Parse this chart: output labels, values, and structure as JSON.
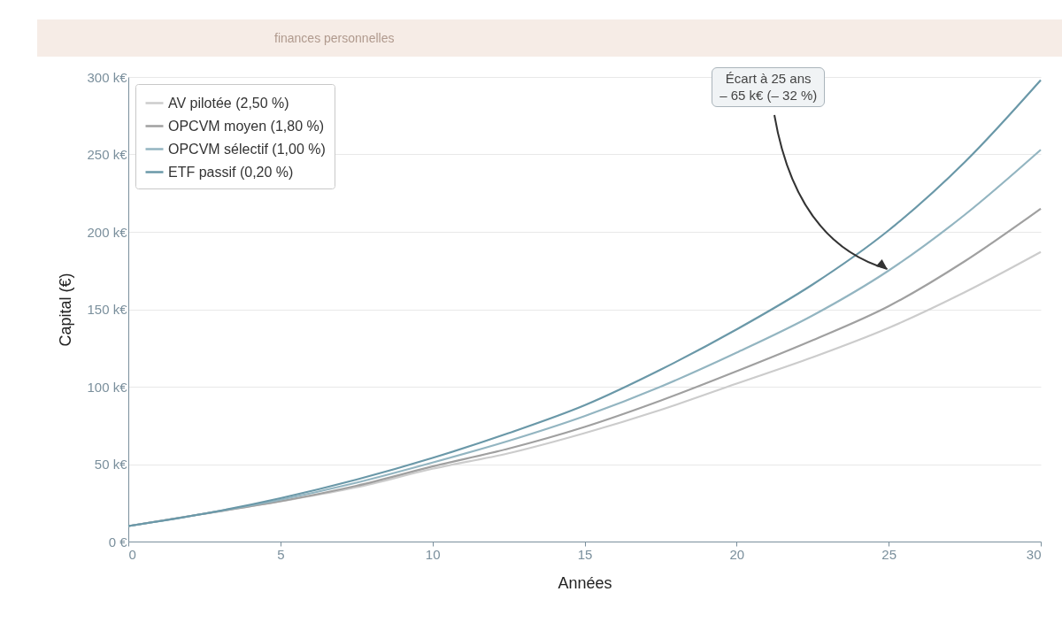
{
  "chart_data": {
    "type": "line",
    "subtitle": "finances personnelles",
    "xlabel": "Années",
    "ylabel": "Capital (€)",
    "x": [
      0,
      2.5,
      5,
      7.5,
      10,
      12.5,
      15,
      17.5,
      20,
      22.5,
      25,
      27.5,
      30
    ],
    "series": [
      {
        "name": "AV pilotée (2,50 %)",
        "color": "#cccccc",
        "values": [
          10,
          18,
          26,
          35,
          47,
          57,
          70,
          85,
          102,
          119,
          138,
          161,
          187
        ]
      },
      {
        "name": "OPCVM moyen (1,80 %)",
        "color": "#a0a0a0",
        "values": [
          10,
          18,
          26,
          36,
          48.5,
          60,
          74,
          91,
          110,
          130,
          152,
          181,
          215
        ]
      },
      {
        "name": "OPCVM sélectif (1,00 %)",
        "color": "#93b5c1",
        "values": [
          10,
          18,
          27,
          38,
          51,
          65,
          81,
          100,
          122,
          146,
          175,
          211,
          253
        ]
      },
      {
        "name": "ETF passif (0,20 %)",
        "color": "#6a98a8",
        "values": [
          10,
          18,
          28,
          40,
          54,
          70,
          88,
          111,
          137,
          166,
          201,
          245,
          298
        ]
      }
    ],
    "xlim": [
      0,
      30
    ],
    "xticks": [
      0,
      5,
      10,
      15,
      20,
      25,
      30
    ],
    "ylim": [
      0,
      300
    ],
    "yticks": [
      {
        "value": 0,
        "label": "0 €"
      },
      {
        "value": 50,
        "label": "50 k€"
      },
      {
        "value": 100,
        "label": "100 k€"
      },
      {
        "value": 150,
        "label": "150 k€"
      },
      {
        "value": 200,
        "label": "200 k€"
      },
      {
        "value": 250,
        "label": "250 k€"
      },
      {
        "value": 300,
        "label": "300 k€"
      }
    ],
    "grid": "y",
    "legend": "top left",
    "marker": "none",
    "line_style": "solid",
    "annotations": [
      {
        "text": "Écart à 25 ans\n– 65 k€ (– 32 %)",
        "x": 25,
        "y": 175
      }
    ]
  }
}
